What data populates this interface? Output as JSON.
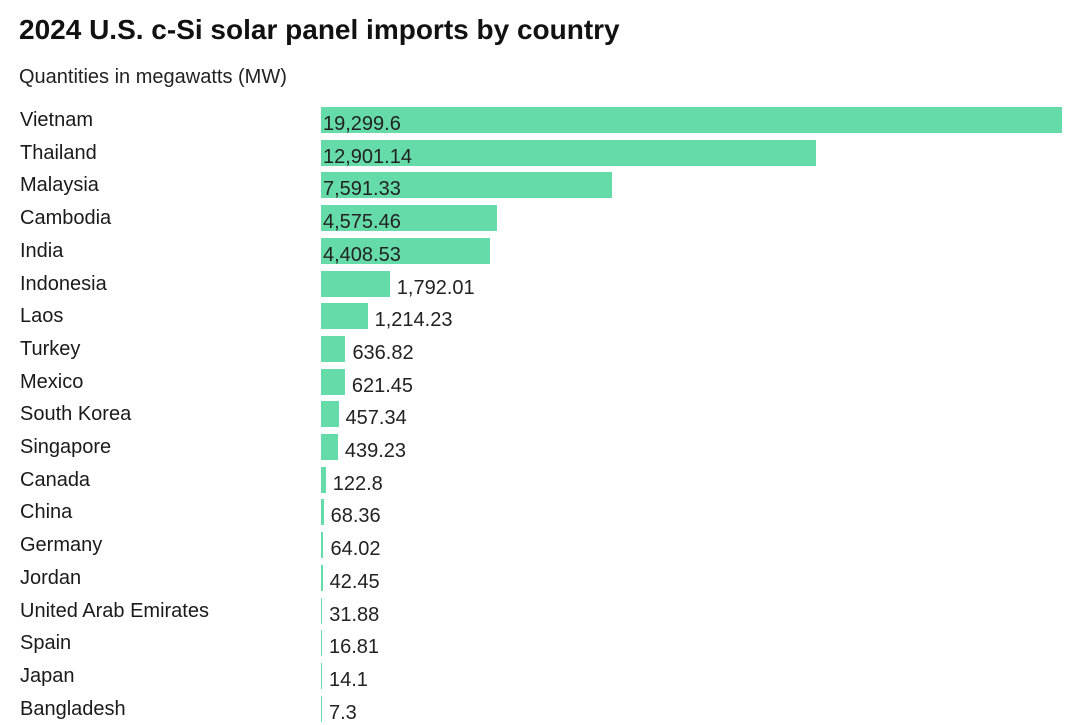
{
  "header": {
    "title": "2024 U.S. c-Si solar panel imports by country",
    "subtitle": "Quantities in megawatts (MW)"
  },
  "colors": {
    "bar": "#66dbaa",
    "text": "#222222"
  },
  "chart_data": {
    "type": "bar",
    "orientation": "horizontal",
    "title": "2024 U.S. c-Si solar panel imports by country",
    "subtitle": "Quantities in megawatts (MW)",
    "xlabel": "",
    "ylabel": "",
    "xlim": [
      0,
      19299.6
    ],
    "grid": false,
    "categories": [
      "Vietnam",
      "Thailand",
      "Malaysia",
      "Cambodia",
      "India",
      "Indonesia",
      "Laos",
      "Turkey",
      "Mexico",
      "South Korea",
      "Singapore",
      "Canada",
      "China",
      "Germany",
      "Jordan",
      "United Arab Emirates",
      "Spain",
      "Japan",
      "Bangladesh"
    ],
    "values": [
      19299.6,
      12901.14,
      7591.33,
      4575.46,
      4408.53,
      1792.01,
      1214.23,
      636.82,
      621.45,
      457.34,
      439.23,
      122.8,
      68.36,
      64.02,
      42.45,
      31.88,
      16.81,
      14.1,
      7.3
    ],
    "value_labels": [
      "19,299.6",
      "12,901.14",
      "7,591.33",
      "4,575.46",
      "4,408.53",
      "1,792.01",
      "1,214.23",
      "636.82",
      "621.45",
      "457.34",
      "439.23",
      "122.8",
      "68.36",
      "64.02",
      "42.45",
      "31.88",
      "16.81",
      "14.1",
      "7.3"
    ]
  }
}
